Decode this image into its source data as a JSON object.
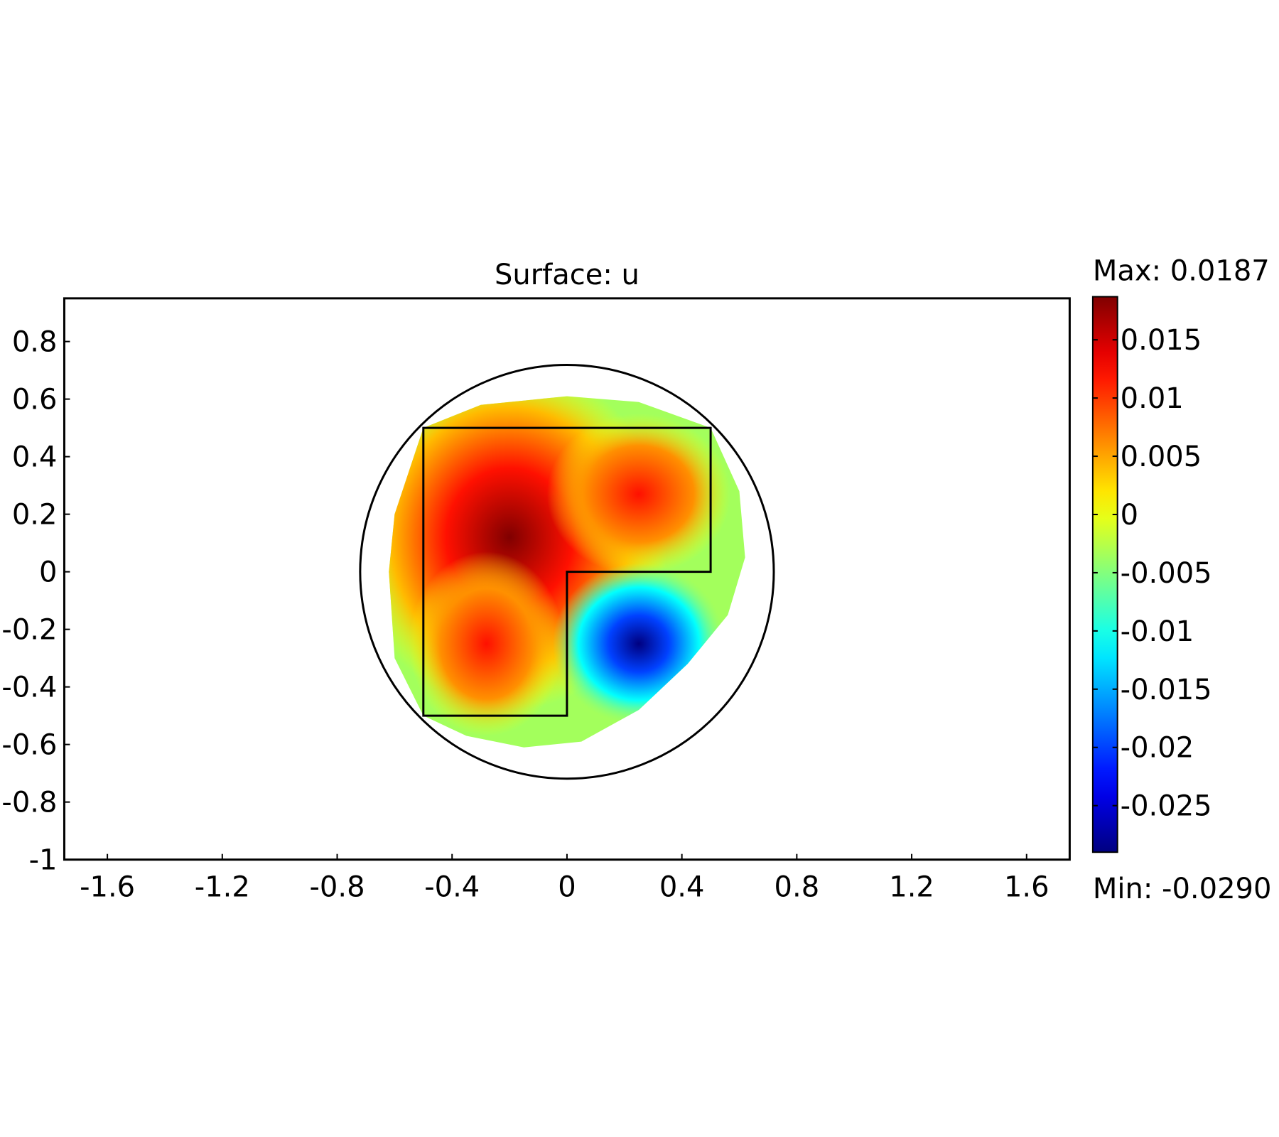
{
  "chart_data": {
    "type": "heatmap",
    "title": "Surface: u",
    "xlabel": "",
    "ylabel": "",
    "xlim": [
      -1.75,
      1.75
    ],
    "ylim": [
      -1,
      0.95
    ],
    "x_ticks": [
      "-1.6",
      "-1.2",
      "-0.8",
      "-0.4",
      "0",
      "0.4",
      "0.8",
      "1.2",
      "1.6"
    ],
    "x_tick_values": [
      -1.6,
      -1.2,
      -0.8,
      -0.4,
      0,
      0.4,
      0.8,
      1.2,
      1.6
    ],
    "y_ticks": [
      "0.8",
      "0.6",
      "0.4",
      "0.2",
      "0",
      "-0.2",
      "-0.4",
      "-0.6",
      "-0.8",
      "-1"
    ],
    "y_tick_values": [
      0.8,
      0.6,
      0.4,
      0.2,
      0,
      -0.2,
      -0.4,
      -0.6,
      -0.8,
      -1
    ],
    "grid": false,
    "geometry": {
      "circle": {
        "center": [
          0,
          0
        ],
        "radius": 0.72
      },
      "l_shape": [
        [
          -0.5,
          0.5
        ],
        [
          0.5,
          0.5
        ],
        [
          0.5,
          0
        ],
        [
          0,
          0
        ],
        [
          0,
          -0.5
        ],
        [
          -0.5,
          -0.5
        ]
      ]
    },
    "extrema": {
      "max": {
        "location": [
          -0.18,
          0.18
        ],
        "value": 0.0187
      },
      "min": {
        "location": [
          0.25,
          -0.25
        ],
        "value": -0.029
      }
    },
    "colorbar": {
      "colormap": "jet",
      "range": [
        -0.029,
        0.0187
      ],
      "max_label": "Max: 0.0187",
      "min_label": "Min: -0.0290",
      "tick_labels": [
        "0.015",
        "0.01",
        "0.005",
        "0",
        "-0.005",
        "-0.01",
        "-0.015",
        "-0.02",
        "-0.025"
      ],
      "tick_values": [
        0.015,
        0.01,
        0.005,
        0,
        -0.005,
        -0.01,
        -0.015,
        -0.02,
        -0.025
      ],
      "colors": [
        "#00008f",
        "#0000ff",
        "#00ffff",
        "#ffff00",
        "#ff0000",
        "#800000"
      ]
    }
  }
}
